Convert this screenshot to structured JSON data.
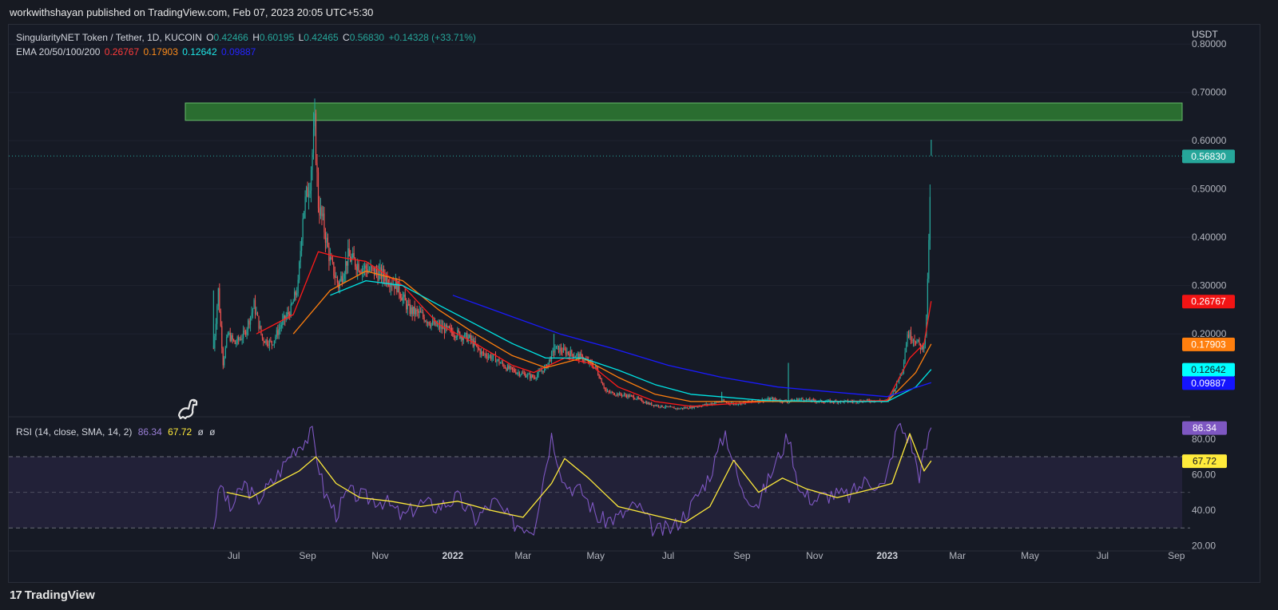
{
  "header": {
    "publisher": "workwithshayan published on TradingView.com, Feb 07, 2023 20:05 UTC+5:30"
  },
  "main_legend": {
    "symbol": "SingularityNET Token / Tether, 1D, KUCOIN",
    "o_label": "O",
    "o_value": "0.42466",
    "h_label": "H",
    "h_value": "0.60195",
    "l_label": "L",
    "l_value": "0.42465",
    "c_label": "C",
    "c_value": "0.56830",
    "change": "+0.14328 (+33.71%)",
    "ema_label": "EMA 20/50/100/200",
    "ema20": "0.26767",
    "ema50": "0.17903",
    "ema100": "0.12642",
    "ema200": "0.09887"
  },
  "rsi_legend": {
    "label": "RSI (14, close, SMA, 14, 2)",
    "rsi": "86.34",
    "sma": "67.72",
    "extra1": "ø",
    "extra2": "ø"
  },
  "footer": {
    "brand": "TradingView",
    "logo_glyph": "17"
  },
  "colors": {
    "up": "#26a69a",
    "down": "#ef5350",
    "ema20": "#ff1a1a",
    "ema50": "#ff7f0e",
    "ema100": "#00e5e5",
    "ema200": "#1a1aff",
    "rsi": "#7e57c2",
    "rsi_sma": "#ffeb3b",
    "zone": "#2e7d32"
  },
  "chart_data": [
    {
      "type": "candlestick",
      "title": "SingularityNET Token / Tether, 1D, KUCOIN",
      "ylabel": "USDT",
      "y_ticks": [
        0.2,
        0.3,
        0.4,
        0.5,
        0.6,
        0.7,
        0.8
      ],
      "y_tick_labels": [
        "0.20000",
        "0.30000",
        "0.40000",
        "0.50000",
        "0.60000",
        "0.70000",
        "0.80000"
      ],
      "x_tick_labels": [
        "Jul",
        "Sep",
        "Nov",
        "2022",
        "Mar",
        "May",
        "Jul",
        "Sep",
        "Nov",
        "2023",
        "Mar",
        "May",
        "Jul",
        "Sep"
      ],
      "ylim": [
        0.03,
        0.84
      ],
      "price_line": {
        "value": 0.5683,
        "label": "0.56830"
      },
      "resistance_zone": {
        "from": 0.642,
        "to": 0.678
      },
      "ema_labels": {
        "ema20": {
          "value": 0.26767,
          "label": "0.26767"
        },
        "ema50": {
          "value": 0.17903,
          "label": "0.17903"
        },
        "ema100": {
          "value": 0.12642,
          "label": "0.12642"
        },
        "ema200": {
          "value": 0.09887,
          "label": "0.09887"
        }
      },
      "price_path": [
        [
          "2021-06-14",
          0.17
        ],
        [
          "2021-06-18",
          0.29
        ],
        [
          "2021-06-22",
          0.14
        ],
        [
          "2021-06-26",
          0.2
        ],
        [
          "2021-07-02",
          0.18
        ],
        [
          "2021-07-10",
          0.2
        ],
        [
          "2021-07-18",
          0.26
        ],
        [
          "2021-07-25",
          0.19
        ],
        [
          "2021-08-02",
          0.18
        ],
        [
          "2021-08-10",
          0.22
        ],
        [
          "2021-08-18",
          0.25
        ],
        [
          "2021-08-24",
          0.3
        ],
        [
          "2021-08-28",
          0.45
        ],
        [
          "2021-09-03",
          0.52
        ],
        [
          "2021-09-07",
          0.63
        ],
        [
          "2021-09-10",
          0.47
        ],
        [
          "2021-09-14",
          0.43
        ],
        [
          "2021-09-20",
          0.35
        ],
        [
          "2021-09-27",
          0.3
        ],
        [
          "2021-10-05",
          0.36
        ],
        [
          "2021-10-15",
          0.34
        ],
        [
          "2021-10-25",
          0.33
        ],
        [
          "2021-11-05",
          0.32
        ],
        [
          "2021-11-15",
          0.3
        ],
        [
          "2021-11-25",
          0.25
        ],
        [
          "2021-12-05",
          0.24
        ],
        [
          "2021-12-15",
          0.22
        ],
        [
          "2021-12-25",
          0.21
        ],
        [
          "2022-01-05",
          0.2
        ],
        [
          "2022-01-15",
          0.19
        ],
        [
          "2022-01-25",
          0.16
        ],
        [
          "2022-02-05",
          0.15
        ],
        [
          "2022-02-15",
          0.13
        ],
        [
          "2022-02-25",
          0.12
        ],
        [
          "2022-03-10",
          0.11
        ],
        [
          "2022-03-20",
          0.13
        ],
        [
          "2022-03-28",
          0.17
        ],
        [
          "2022-04-10",
          0.16
        ],
        [
          "2022-04-20",
          0.15
        ],
        [
          "2022-05-01",
          0.13
        ],
        [
          "2022-05-10",
          0.08
        ],
        [
          "2022-05-20",
          0.075
        ],
        [
          "2022-06-01",
          0.07
        ],
        [
          "2022-06-15",
          0.055
        ],
        [
          "2022-06-25",
          0.05
        ],
        [
          "2022-07-10",
          0.045
        ],
        [
          "2022-07-25",
          0.05
        ],
        [
          "2022-08-05",
          0.055
        ],
        [
          "2022-08-15",
          0.06
        ],
        [
          "2022-08-25",
          0.055
        ],
        [
          "2022-09-10",
          0.06
        ],
        [
          "2022-09-25",
          0.065
        ],
        [
          "2022-10-08",
          0.06
        ],
        [
          "2022-10-20",
          0.065
        ],
        [
          "2022-11-05",
          0.06
        ],
        [
          "2022-11-20",
          0.06
        ],
        [
          "2022-12-05",
          0.06
        ],
        [
          "2022-12-20",
          0.062
        ],
        [
          "2023-01-01",
          0.06
        ],
        [
          "2023-01-08",
          0.09
        ],
        [
          "2023-01-14",
          0.13
        ],
        [
          "2023-01-18",
          0.2
        ],
        [
          "2023-01-24",
          0.19
        ],
        [
          "2023-01-30",
          0.17
        ],
        [
          "2023-02-02",
          0.19
        ],
        [
          "2023-02-04",
          0.3
        ],
        [
          "2023-02-05",
          0.4
        ],
        [
          "2023-02-06",
          0.47
        ],
        [
          "2023-02-07",
          0.5683
        ]
      ],
      "spikes": [
        {
          "x": "2021-06-14",
          "high": 0.29
        },
        {
          "x": "2021-09-07",
          "high": 0.655
        },
        {
          "x": "2022-03-27",
          "high": 0.2
        },
        {
          "x": "2022-08-15",
          "high": 0.08
        },
        {
          "x": "2022-10-10",
          "high": 0.14
        },
        {
          "x": "2023-02-07",
          "high": 0.60195
        }
      ],
      "series": [
        {
          "name": "EMA 20",
          "points": [
            [
              "2021-07-20",
              0.2
            ],
            [
              "2021-08-20",
              0.24
            ],
            [
              "2021-09-10",
              0.37
            ],
            [
              "2021-09-25",
              0.36
            ],
            [
              "2021-10-20",
              0.35
            ],
            [
              "2021-11-20",
              0.3
            ],
            [
              "2021-12-20",
              0.22
            ],
            [
              "2022-01-20",
              0.18
            ],
            [
              "2022-02-20",
              0.135
            ],
            [
              "2022-03-10",
              0.12
            ],
            [
              "2022-04-05",
              0.15
            ],
            [
              "2022-04-25",
              0.14
            ],
            [
              "2022-05-20",
              0.09
            ],
            [
              "2022-06-20",
              0.06
            ],
            [
              "2022-07-20",
              0.05
            ],
            [
              "2022-09-20",
              0.06
            ],
            [
              "2022-11-20",
              0.06
            ],
            [
              "2023-01-01",
              0.062
            ],
            [
              "2023-01-20",
              0.15
            ],
            [
              "2023-02-01",
              0.18
            ],
            [
              "2023-02-07",
              0.26767
            ]
          ]
        },
        {
          "name": "EMA 50",
          "points": [
            [
              "2021-08-20",
              0.2
            ],
            [
              "2021-09-20",
              0.29
            ],
            [
              "2021-10-20",
              0.33
            ],
            [
              "2021-11-20",
              0.31
            ],
            [
              "2021-12-20",
              0.25
            ],
            [
              "2022-01-20",
              0.2
            ],
            [
              "2022-02-20",
              0.155
            ],
            [
              "2022-03-20",
              0.13
            ],
            [
              "2022-04-20",
              0.15
            ],
            [
              "2022-05-20",
              0.11
            ],
            [
              "2022-06-20",
              0.075
            ],
            [
              "2022-07-20",
              0.06
            ],
            [
              "2022-09-20",
              0.06
            ],
            [
              "2022-11-20",
              0.06
            ],
            [
              "2023-01-01",
              0.06
            ],
            [
              "2023-01-25",
              0.12
            ],
            [
              "2023-02-07",
              0.17903
            ]
          ]
        },
        {
          "name": "EMA 100",
          "points": [
            [
              "2021-09-20",
              0.28
            ],
            [
              "2021-10-20",
              0.31
            ],
            [
              "2021-11-20",
              0.3
            ],
            [
              "2021-12-20",
              0.26
            ],
            [
              "2022-01-20",
              0.22
            ],
            [
              "2022-02-20",
              0.18
            ],
            [
              "2022-03-20",
              0.15
            ],
            [
              "2022-04-20",
              0.15
            ],
            [
              "2022-05-20",
              0.125
            ],
            [
              "2022-06-20",
              0.095
            ],
            [
              "2022-07-20",
              0.075
            ],
            [
              "2022-09-20",
              0.062
            ],
            [
              "2022-11-20",
              0.06
            ],
            [
              "2023-01-01",
              0.06
            ],
            [
              "2023-01-25",
              0.09
            ],
            [
              "2023-02-07",
              0.12642
            ]
          ]
        },
        {
          "name": "EMA 200",
          "points": [
            [
              "2022-01-01",
              0.28
            ],
            [
              "2022-02-15",
              0.24
            ],
            [
              "2022-04-01",
              0.2
            ],
            [
              "2022-05-15",
              0.17
            ],
            [
              "2022-07-01",
              0.135
            ],
            [
              "2022-08-15",
              0.11
            ],
            [
              "2022-10-01",
              0.09
            ],
            [
              "2022-11-15",
              0.08
            ],
            [
              "2023-01-01",
              0.07
            ],
            [
              "2023-02-07",
              0.09887
            ]
          ]
        }
      ]
    },
    {
      "type": "line",
      "title": "RSI (14, close, SMA, 14, 2)",
      "y_ticks": [
        20,
        40,
        60,
        80
      ],
      "y_tick_labels": [
        "20.00",
        "40.00",
        "60.00",
        "80.00"
      ],
      "ylim": [
        18,
        92
      ],
      "band_levels": [
        30,
        50,
        70
      ],
      "labels": {
        "rsi": {
          "value": 86.34,
          "label": "86.34"
        },
        "sma": {
          "value": 67.72,
          "label": "67.72"
        }
      },
      "series": [
        {
          "name": "RSI",
          "points": [
            [
              "2021-06-14",
              31
            ],
            [
              "2021-06-20",
              55
            ],
            [
              "2021-06-28",
              40
            ],
            [
              "2021-07-10",
              55
            ],
            [
              "2021-07-20",
              45
            ],
            [
              "2021-08-05",
              58
            ],
            [
              "2021-08-20",
              74
            ],
            [
              "2021-09-05",
              83
            ],
            [
              "2021-09-15",
              50
            ],
            [
              "2021-09-25",
              38
            ],
            [
              "2021-10-05",
              50
            ],
            [
              "2021-10-20",
              47
            ],
            [
              "2021-11-05",
              45
            ],
            [
              "2021-11-20",
              36
            ],
            [
              "2021-12-05",
              44
            ],
            [
              "2021-12-20",
              42
            ],
            [
              "2022-01-05",
              47
            ],
            [
              "2022-01-20",
              35
            ],
            [
              "2022-02-05",
              45
            ],
            [
              "2022-02-20",
              33
            ],
            [
              "2022-03-10",
              30
            ],
            [
              "2022-03-25",
              82
            ],
            [
              "2022-04-05",
              55
            ],
            [
              "2022-04-20",
              50
            ],
            [
              "2022-05-05",
              34
            ],
            [
              "2022-05-20",
              36
            ],
            [
              "2022-06-05",
              43
            ],
            [
              "2022-06-20",
              28
            ],
            [
              "2022-07-05",
              30
            ],
            [
              "2022-07-20",
              42
            ],
            [
              "2022-08-05",
              60
            ],
            [
              "2022-08-18",
              84
            ],
            [
              "2022-09-01",
              50
            ],
            [
              "2022-09-15",
              44
            ],
            [
              "2022-09-25",
              60
            ],
            [
              "2022-10-10",
              82
            ],
            [
              "2022-10-20",
              50
            ],
            [
              "2022-11-01",
              46
            ],
            [
              "2022-11-15",
              49
            ],
            [
              "2022-11-30",
              48
            ],
            [
              "2022-12-15",
              57
            ],
            [
              "2022-12-30",
              53
            ],
            [
              "2023-01-10",
              88
            ],
            [
              "2023-01-20",
              80
            ],
            [
              "2023-01-28",
              60
            ],
            [
              "2023-02-07",
              86.34
            ]
          ]
        },
        {
          "name": "RSI SMA",
          "points": [
            [
              "2021-06-25",
              50
            ],
            [
              "2021-07-15",
              47
            ],
            [
              "2021-08-05",
              55
            ],
            [
              "2021-08-25",
              62
            ],
            [
              "2021-09-08",
              70
            ],
            [
              "2021-09-25",
              55
            ],
            [
              "2021-10-15",
              47
            ],
            [
              "2021-11-10",
              45
            ],
            [
              "2021-12-05",
              42
            ],
            [
              "2022-01-05",
              45
            ],
            [
              "2022-02-01",
              40
            ],
            [
              "2022-03-01",
              36
            ],
            [
              "2022-03-25",
              55
            ],
            [
              "2022-04-05",
              69
            ],
            [
              "2022-04-25",
              58
            ],
            [
              "2022-05-20",
              42
            ],
            [
              "2022-06-20",
              37
            ],
            [
              "2022-07-15",
              33
            ],
            [
              "2022-08-05",
              42
            ],
            [
              "2022-08-25",
              68
            ],
            [
              "2022-09-15",
              50
            ],
            [
              "2022-10-05",
              58
            ],
            [
              "2022-10-25",
              52
            ],
            [
              "2022-11-20",
              47
            ],
            [
              "2022-12-20",
              52
            ],
            [
              "2023-01-05",
              55
            ],
            [
              "2023-01-20",
              83
            ],
            [
              "2023-02-01",
              62
            ],
            [
              "2023-02-07",
              67.72
            ]
          ]
        }
      ]
    }
  ]
}
